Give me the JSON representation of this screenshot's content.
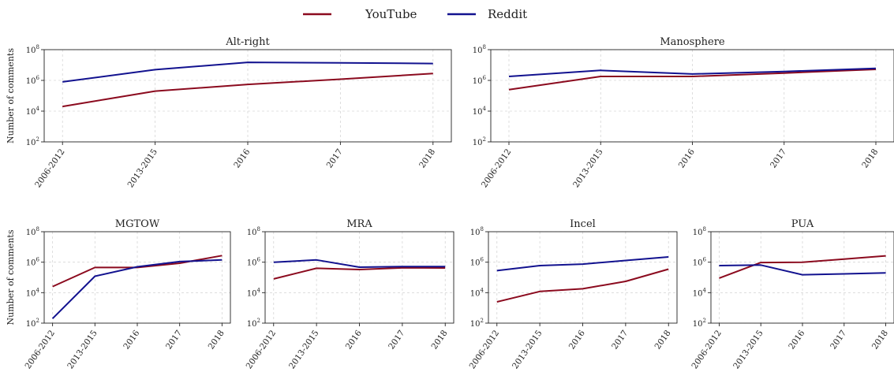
{
  "legend": {
    "placement": "top-center",
    "entries": [
      {
        "label": "YouTube",
        "color": "#8b0a1e"
      },
      {
        "label": "Reddit",
        "color": "#12128f"
      }
    ]
  },
  "chart_data": [
    {
      "type": "line",
      "title": "Alt-right",
      "ylabel": "Number of comments",
      "yscale": "log",
      "ylim": [
        100,
        100000000
      ],
      "categories": [
        "2006-2012",
        "2013-2015",
        "2016",
        "2017",
        "2018"
      ],
      "grid": true,
      "series": [
        {
          "name": "YouTube",
          "color": "#8b0a1e",
          "values": [
            20000,
            200000,
            550000,
            1200000,
            2800000
          ]
        },
        {
          "name": "Reddit",
          "color": "#12128f",
          "values": [
            800000,
            5000000,
            15000000,
            14000000,
            12500000
          ]
        }
      ]
    },
    {
      "type": "line",
      "title": "Manosphere",
      "ylabel": "",
      "yscale": "log",
      "ylim": [
        100,
        100000000
      ],
      "categories": [
        "2006-2012",
        "2013-2015",
        "2016",
        "2017",
        "2018"
      ],
      "grid": true,
      "series": [
        {
          "name": "YouTube",
          "color": "#8b0a1e",
          "values": [
            250000,
            1800000,
            1800000,
            3000000,
            5200000
          ]
        },
        {
          "name": "Reddit",
          "color": "#12128f",
          "values": [
            1800000,
            4500000,
            2600000,
            3800000,
            6000000
          ]
        }
      ]
    },
    {
      "type": "line",
      "title": "MGTOW",
      "ylabel": "Number of comments",
      "yscale": "log",
      "ylim": [
        100,
        100000000
      ],
      "categories": [
        "2006-2012",
        "2013-2015",
        "2016",
        "2017",
        "2018"
      ],
      "grid": true,
      "series": [
        {
          "name": "YouTube",
          "color": "#8b0a1e",
          "values": [
            25000,
            450000,
            450000,
            850000,
            2700000
          ]
        },
        {
          "name": "Reddit",
          "color": "#12128f",
          "values": [
            200,
            120000,
            500000,
            1100000,
            1400000
          ]
        }
      ]
    },
    {
      "type": "line",
      "title": "MRA",
      "ylabel": "",
      "yscale": "log",
      "ylim": [
        100,
        100000000
      ],
      "categories": [
        "2006-2012",
        "2013-2015",
        "2016",
        "2017",
        "2018"
      ],
      "grid": true,
      "series": [
        {
          "name": "YouTube",
          "color": "#8b0a1e",
          "values": [
            80000,
            400000,
            330000,
            430000,
            420000
          ]
        },
        {
          "name": "Reddit",
          "color": "#12128f",
          "values": [
            1000000,
            1400000,
            470000,
            520000,
            520000
          ]
        }
      ]
    },
    {
      "type": "line",
      "title": "Incel",
      "ylabel": "",
      "yscale": "log",
      "ylim": [
        100,
        100000000
      ],
      "categories": [
        "2006-2012",
        "2013-2015",
        "2016",
        "2017",
        "2018"
      ],
      "grid": true,
      "series": [
        {
          "name": "YouTube",
          "color": "#8b0a1e",
          "values": [
            2500,
            12000,
            18000,
            55000,
            350000
          ]
        },
        {
          "name": "Reddit",
          "color": "#12128f",
          "values": [
            280000,
            600000,
            750000,
            1300000,
            2200000
          ]
        }
      ]
    },
    {
      "type": "line",
      "title": "PUA",
      "ylabel": "",
      "yscale": "log",
      "ylim": [
        100,
        100000000
      ],
      "categories": [
        "2006-2012",
        "2013-2015",
        "2016",
        "2017",
        "2018"
      ],
      "grid": true,
      "series": [
        {
          "name": "YouTube",
          "color": "#8b0a1e",
          "values": [
            90000,
            950000,
            1000000,
            1600000,
            2600000
          ]
        },
        {
          "name": "Reddit",
          "color": "#12128f",
          "values": [
            600000,
            650000,
            150000,
            170000,
            200000
          ]
        }
      ]
    }
  ]
}
